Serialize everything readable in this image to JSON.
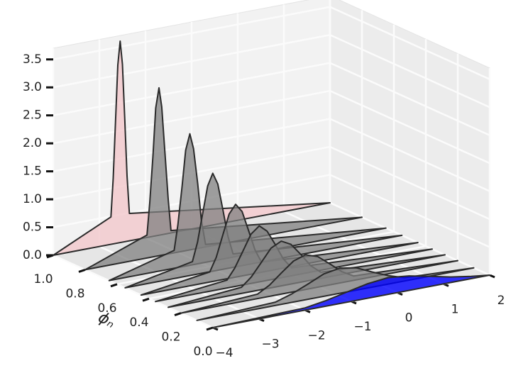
{
  "chart_data": {
    "type": "polygon3d",
    "ylabel": "ϕₙ",
    "xlim": [
      -4,
      2
    ],
    "ylim": [
      0,
      1
    ],
    "zlim": [
      0,
      3.7
    ],
    "xticks": [
      {
        "value": -4,
        "label": "−4"
      },
      {
        "value": -3,
        "label": "−3"
      },
      {
        "value": -2,
        "label": "−2"
      },
      {
        "value": -1,
        "label": "−1"
      },
      0,
      1,
      2
    ],
    "yticks": [
      {
        "value": 0,
        "label": "0.0"
      },
      0.2,
      0.4,
      0.6,
      0.8,
      {
        "value": 1,
        "label": "1.0"
      }
    ],
    "zticks": [
      {
        "value": 0,
        "label": "0.0"
      },
      0.5,
      {
        "value": 1,
        "label": "1.0"
      },
      1.5,
      {
        "value": 2,
        "label": "2.0"
      },
      2.5,
      {
        "value": 3,
        "label": "3.0"
      },
      3.5
    ],
    "grid": true,
    "series": [
      {
        "y": 1,
        "color": "#f2c4c8",
        "opacity": 0.75,
        "x": [
          -4,
          -2.75,
          -2.7,
          -2.65,
          -2.6,
          -2.55,
          -2.5,
          -2.45,
          -2.4,
          -2.35,
          2
        ],
        "values": [
          0,
          0.49,
          1.17,
          2.19,
          3.18,
          3.6,
          3.18,
          2.19,
          1.17,
          0.49,
          0
        ]
      },
      {
        "y": 0.8,
        "color": "#808080",
        "opacity": 0.75,
        "x": [
          -4,
          -2.66,
          -2.6,
          -2.53,
          -2.47,
          -2.4,
          -2.34,
          -2.27,
          -2.2,
          -2.14,
          2
        ],
        "values": [
          0,
          0.41,
          0.98,
          1.82,
          2.65,
          3.0,
          2.65,
          1.82,
          0.98,
          0.41,
          0
        ]
      },
      {
        "y": 0.65,
        "color": "#808080",
        "opacity": 0.75,
        "x": [
          -4,
          -2.59,
          -2.51,
          -2.42,
          -2.34,
          -2.25,
          -2.17,
          -2.08,
          -2.0,
          -1.91,
          2
        ],
        "values": [
          0,
          0.32,
          0.76,
          1.43,
          2.07,
          2.35,
          2.07,
          1.43,
          0.76,
          0.32,
          0
        ]
      },
      {
        "y": 0.55,
        "color": "#808080",
        "opacity": 0.75,
        "x": [
          -4,
          -2.54,
          -2.43,
          -2.32,
          -2.21,
          -2.1,
          -1.99,
          -1.88,
          -1.77,
          -1.66,
          2
        ],
        "values": [
          0,
          0.24,
          0.57,
          1.06,
          1.54,
          1.75,
          1.54,
          1.06,
          0.57,
          0.24,
          0
        ]
      },
      {
        "y": 0.45,
        "color": "#808080",
        "opacity": 0.75,
        "x": [
          -4,
          -2.51,
          -2.37,
          -2.23,
          -2.09,
          -1.95,
          -1.81,
          -1.67,
          -1.53,
          -1.39,
          2
        ],
        "values": [
          0,
          0.18,
          0.42,
          0.79,
          1.15,
          1.3,
          1.15,
          0.79,
          0.42,
          0.18,
          0
        ]
      },
      {
        "y": 0.36,
        "color": "#808080",
        "opacity": 0.75,
        "x": [
          -4,
          -2.45,
          -2.28,
          -2.1,
          -1.93,
          -1.75,
          -1.58,
          -1.4,
          -1.23,
          -1.05,
          2
        ],
        "values": [
          0,
          0.14,
          0.33,
          0.61,
          0.88,
          1.0,
          0.88,
          0.61,
          0.33,
          0.14,
          0
        ]
      },
      {
        "y": 0.28,
        "color": "#808080",
        "opacity": 0.75,
        "x": [
          -4,
          -2.41,
          -2.2,
          -1.98,
          -1.77,
          -1.55,
          -1.34,
          -1.12,
          -0.91,
          -0.69,
          2
        ],
        "values": [
          0,
          0.11,
          0.26,
          0.49,
          0.71,
          0.8,
          0.71,
          0.49,
          0.26,
          0.11,
          0
        ]
      },
      {
        "y": 0.2,
        "color": "#808080",
        "opacity": 0.75,
        "x": [
          -4,
          -2.34,
          -2.08,
          -1.82,
          -1.56,
          -1.3,
          -1.04,
          -0.78,
          -0.52,
          -0.26,
          2
        ],
        "values": [
          0,
          0.08,
          0.2,
          0.38,
          0.55,
          0.62,
          0.55,
          0.38,
          0.2,
          0.08,
          0
        ]
      },
      {
        "y": 0.1,
        "color": "#808080",
        "opacity": 0.75,
        "x": [
          -4,
          -2.3,
          -1.95,
          -1.6,
          -1.25,
          -0.9,
          -0.55,
          -0.2,
          0.15,
          0.5,
          2
        ],
        "values": [
          0,
          0.06,
          0.15,
          0.27,
          0.4,
          0.45,
          0.4,
          0.27,
          0.15,
          0.06,
          0
        ]
      },
      {
        "y": 0,
        "color": "#0000ff",
        "opacity": 0.8,
        "x": [
          -4,
          -2.0,
          -1.55,
          -1.1,
          -0.65,
          -0.2,
          0.25,
          0.7,
          1.15,
          1.6,
          2
        ],
        "values": [
          0,
          0.04,
          0.1,
          0.18,
          0.26,
          0.3,
          0.26,
          0.18,
          0.1,
          0.04,
          0
        ]
      }
    ]
  }
}
